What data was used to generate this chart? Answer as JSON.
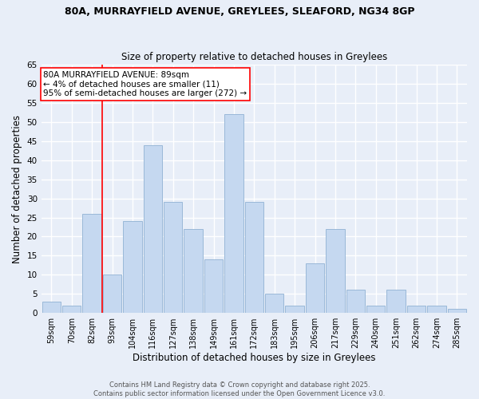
{
  "title_line1": "80A, MURRAYFIELD AVENUE, GREYLEES, SLEAFORD, NG34 8GP",
  "title_line2": "Size of property relative to detached houses in Greylees",
  "xlabel": "Distribution of detached houses by size in Greylees",
  "ylabel": "Number of detached properties",
  "categories": [
    "59sqm",
    "70sqm",
    "82sqm",
    "93sqm",
    "104sqm",
    "116sqm",
    "127sqm",
    "138sqm",
    "149sqm",
    "161sqm",
    "172sqm",
    "183sqm",
    "195sqm",
    "206sqm",
    "217sqm",
    "229sqm",
    "240sqm",
    "251sqm",
    "262sqm",
    "274sqm",
    "285sqm"
  ],
  "values": [
    3,
    2,
    26,
    10,
    24,
    44,
    29,
    22,
    14,
    52,
    29,
    5,
    2,
    13,
    22,
    6,
    2,
    6,
    2,
    2,
    1
  ],
  "bar_color": "#c5d8f0",
  "bar_edge_color": "#9ab8d8",
  "annotation_box_text": "80A MURRAYFIELD AVENUE: 89sqm\n← 4% of detached houses are smaller (11)\n95% of semi-detached houses are larger (272) →",
  "red_line_index": 3,
  "ylim": [
    0,
    65
  ],
  "yticks": [
    0,
    5,
    10,
    15,
    20,
    25,
    30,
    35,
    40,
    45,
    50,
    55,
    60,
    65
  ],
  "annotation_fontsize": 7.5,
  "footer_text": "Contains HM Land Registry data © Crown copyright and database right 2025.\nContains public sector information licensed under the Open Government Licence v3.0.",
  "background_color": "#e8eef8",
  "grid_color": "#ffffff"
}
